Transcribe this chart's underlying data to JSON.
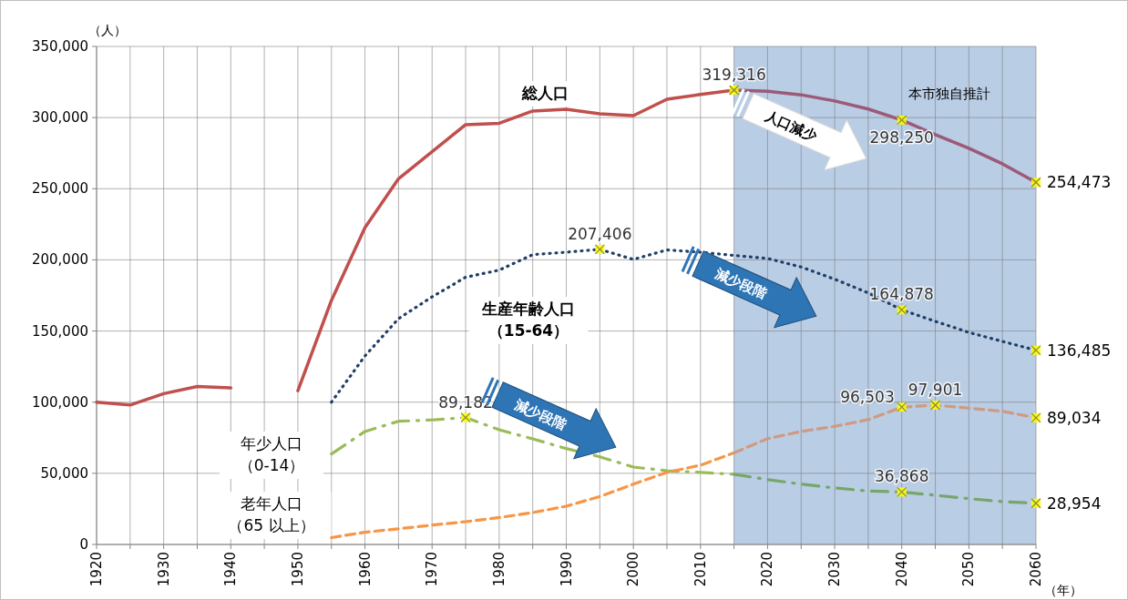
{
  "chart_data": {
    "type": "line",
    "xlabel": "（年）",
    "ylabel": "（人）",
    "xlim": [
      1920,
      2060
    ],
    "ylim": [
      0,
      350000
    ],
    "xticks": [
      1920,
      {
        "value": 1925,
        "label": null
      },
      1930,
      {
        "value": 1935,
        "label": null
      },
      1940,
      {
        "value": 1945,
        "label": null
      },
      1950,
      {
        "value": 1955,
        "label": null
      },
      1960,
      {
        "value": 1965,
        "label": null
      },
      1970,
      {
        "value": 1975,
        "label": null
      },
      1980,
      {
        "value": 1985,
        "label": null
      },
      1990,
      {
        "value": 1995,
        "label": null
      },
      2000,
      {
        "value": 2005,
        "label": null
      },
      2010,
      {
        "value": 2015,
        "label": null
      },
      2020,
      {
        "value": 2025,
        "label": null
      },
      2030,
      {
        "value": 2035,
        "label": null
      },
      2040,
      {
        "value": 2045,
        "label": null
      },
      2050,
      {
        "value": 2055,
        "label": null
      },
      2060
    ],
    "yticks": [
      0,
      {
        "value": 50000,
        "label": "50,000"
      },
      {
        "value": 100000,
        "label": "100,000"
      },
      {
        "value": 150000,
        "label": "150,000"
      },
      {
        "value": 200000,
        "label": "200,000"
      },
      {
        "value": 250000,
        "label": "250,000"
      },
      {
        "value": 300000,
        "label": "300,000"
      },
      {
        "value": 350000,
        "label": "350,000"
      }
    ],
    "grid": true,
    "bands": [
      {
        "axis": "x",
        "from": 2015,
        "to": 2060,
        "label": "本市独自推計",
        "color": "#b9cde5"
      }
    ],
    "series": [
      {
        "color": "#c0504d",
        "line_style": "solid",
        "x": [
          1920,
          1925,
          1930,
          1935,
          1940,
          1945,
          1950,
          1955,
          1960,
          1965,
          1970,
          1975,
          1980,
          1985,
          1990,
          1995,
          2000,
          2005,
          2010,
          2015
        ],
        "values": [
          100000,
          98000,
          106000,
          111000,
          110000,
          null,
          108000,
          171500,
          222700,
          257000,
          276000,
          295000,
          296000,
          304600,
          305900,
          302700,
          301400,
          312900,
          316200,
          319316
        ],
        "value_labels": [
          null,
          null,
          null,
          null,
          null,
          null,
          null,
          null,
          null,
          null,
          null,
          null,
          null,
          null,
          null,
          null,
          null,
          null,
          null,
          "319,316"
        ]
      },
      {
        "color": "#9b5a78",
        "line_style": "solid",
        "x": [
          2015,
          2020,
          2025,
          2030,
          2035,
          2040,
          2045,
          2050,
          2055,
          2060
        ],
        "values": [
          319316,
          318500,
          316000,
          311700,
          306000,
          298250,
          288000,
          278400,
          267500,
          254473
        ],
        "value_labels": [
          null,
          null,
          null,
          null,
          null,
          "298,250",
          null,
          null,
          null,
          "254,473"
        ]
      },
      {
        "color": "#1f3f66",
        "line_style": "dotted",
        "x": [
          1955,
          1960,
          1965,
          1970,
          1975,
          1980,
          1985,
          1990,
          1995,
          2000,
          2005,
          2010,
          2015,
          2020,
          2025,
          2030,
          2035,
          2040,
          2045,
          2050,
          2055,
          2060
        ],
        "values": [
          100000,
          132500,
          158700,
          174000,
          187800,
          192800,
          203700,
          205400,
          207406,
          200300,
          207000,
          205400,
          203100,
          201000,
          195000,
          186400,
          176800,
          164878,
          156800,
          149000,
          142700,
          136485
        ],
        "value_labels": [
          null,
          null,
          null,
          null,
          null,
          null,
          null,
          null,
          "207,406",
          null,
          null,
          null,
          null,
          null,
          null,
          null,
          null,
          "164,878",
          null,
          null,
          null,
          "136,485"
        ]
      },
      {
        "color": "#9bbb59",
        "line_style": "dashdot",
        "x": [
          1955,
          1960,
          1965,
          1970,
          1975,
          1980,
          1985,
          1990,
          1995,
          2000,
          2005,
          2010,
          2015
        ],
        "values": [
          63600,
          79400,
          86600,
          87500,
          89182,
          80600,
          74200,
          67400,
          61600,
          54400,
          51800,
          50700,
          49300
        ],
        "value_labels": [
          null,
          null,
          null,
          null,
          "89,182",
          null,
          null,
          null,
          null,
          null,
          null,
          null,
          null
        ]
      },
      {
        "color": "#76a66a",
        "line_style": "dashdot",
        "x": [
          2015,
          2020,
          2025,
          2030,
          2035,
          2040,
          2045,
          2050,
          2055,
          2060
        ],
        "values": [
          49300,
          45600,
          42400,
          39700,
          37600,
          36868,
          34600,
          32200,
          30100,
          28954
        ],
        "value_labels": [
          null,
          null,
          null,
          null,
          null,
          "36,868",
          null,
          null,
          null,
          "28,954"
        ]
      },
      {
        "color": "#f79646",
        "line_style": "dashed",
        "x": [
          1955,
          1960,
          1965,
          1970,
          1975,
          1980,
          1985,
          1990,
          1995,
          2000,
          2005,
          2010,
          2015
        ],
        "values": [
          4800,
          8600,
          11000,
          13600,
          16000,
          18900,
          22400,
          26900,
          33700,
          42400,
          50700,
          55700,
          64400
        ],
        "value_labels": [
          null,
          null,
          null,
          null,
          null,
          null,
          null,
          null,
          null,
          null,
          null,
          null,
          null
        ]
      },
      {
        "color": "#cf9a80",
        "line_style": "dashed",
        "x": [
          2015,
          2020,
          2025,
          2030,
          2035,
          2040,
          2045,
          2050,
          2055,
          2060
        ],
        "values": [
          64400,
          74400,
          79400,
          83000,
          87700,
          96503,
          97901,
          95800,
          93600,
          89034
        ],
        "value_labels": [
          null,
          null,
          null,
          null,
          null,
          "96,503",
          "97,901",
          null,
          null,
          "89,034"
        ]
      }
    ],
    "annotations": [
      "総人口",
      "生産年齢人口（15-64）",
      "年少人口（0-14）",
      "老年人口（65 以上）",
      "人口減少",
      "減少段階",
      "減少段階"
    ]
  }
}
